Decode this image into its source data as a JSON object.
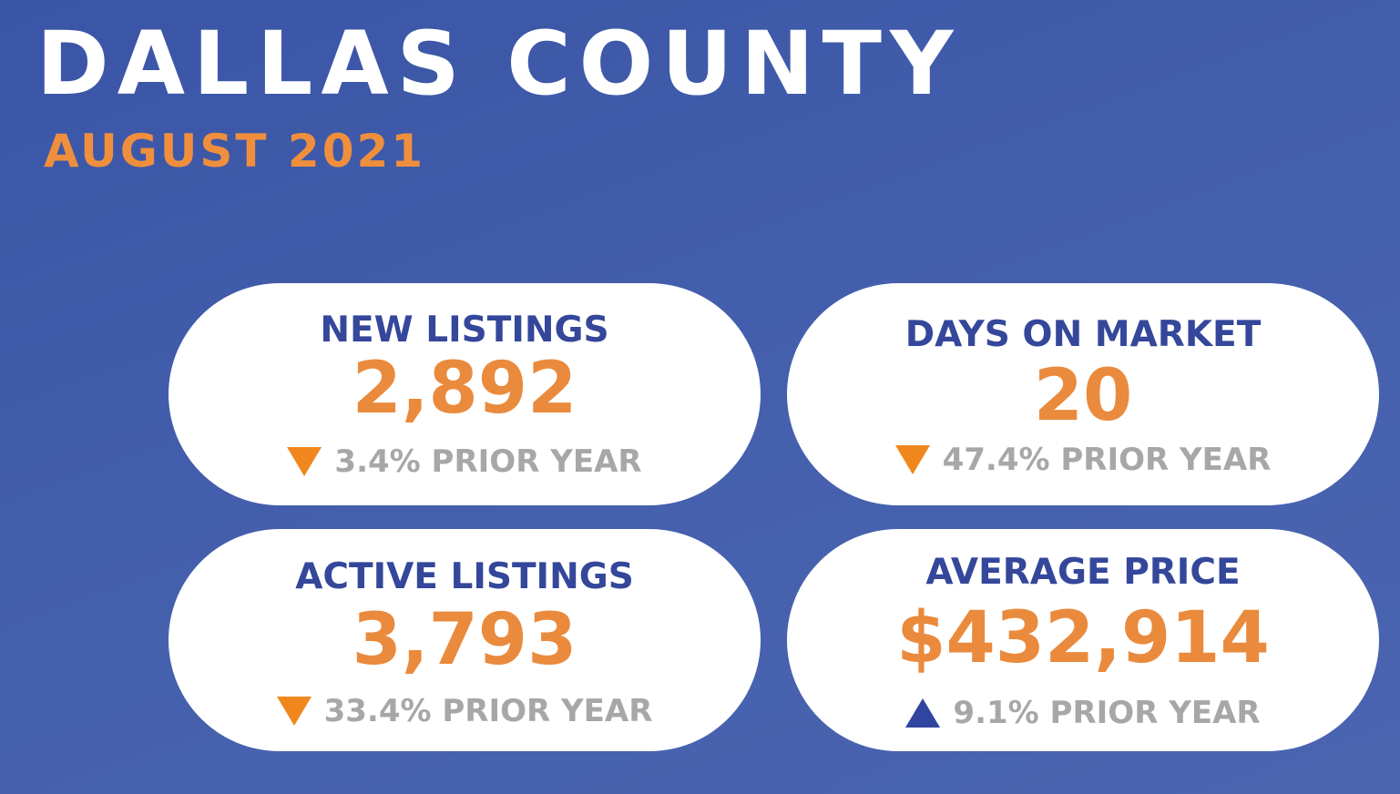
{
  "header": {
    "title": "DALLAS COUNTY",
    "subtitle": "AUGUST 2021"
  },
  "colors": {
    "background": "#4560ad",
    "title": "#ffffff",
    "accent_orange": "#ea8a3d",
    "label_blue": "#34479a",
    "change_gray": "#a7a7a7",
    "arrow_down": "#f0871d",
    "arrow_up": "#2f45a0"
  },
  "stats": {
    "new_listings": {
      "label": "NEW LISTINGS",
      "value": "2,892",
      "change": "3.4% PRIOR YEAR",
      "direction": "down",
      "icon": "down-triangle-icon"
    },
    "days_on_market": {
      "label": "DAYS ON MARKET",
      "value": "20",
      "change": "47.4% PRIOR YEAR",
      "direction": "down",
      "icon": "down-triangle-icon"
    },
    "active_listings": {
      "label": "ACTIVE LISTINGS",
      "value": "3,793",
      "change": "33.4% PRIOR YEAR",
      "direction": "down",
      "icon": "down-triangle-icon"
    },
    "average_price": {
      "label": "AVERAGE PRICE",
      "value": "$432,914",
      "change": "9.1% PRIOR YEAR",
      "direction": "up",
      "icon": "up-triangle-icon"
    }
  }
}
